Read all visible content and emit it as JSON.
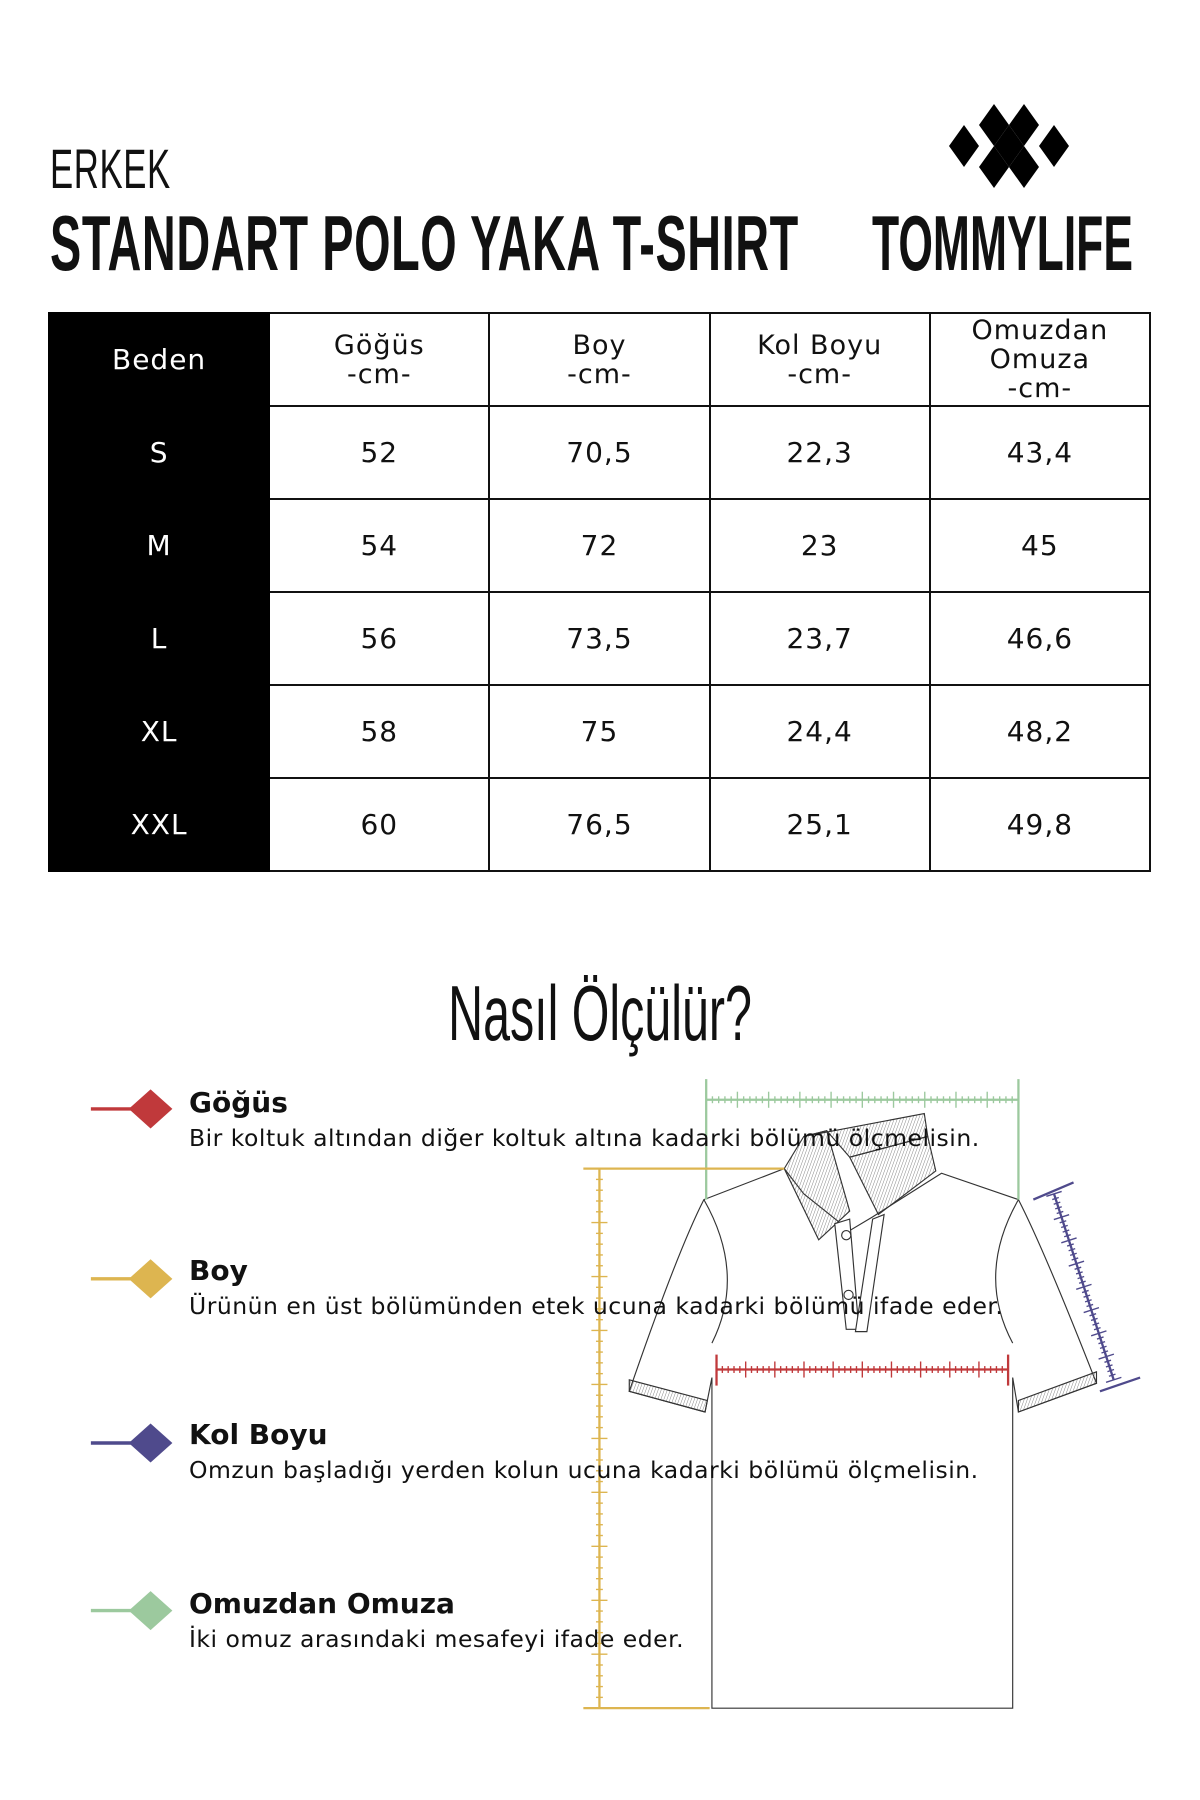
{
  "header": {
    "subtitle": "ERKEK",
    "title": "STANDART POLO YAKA T-SHIRT",
    "brand": "TOMMYLIFE"
  },
  "table": {
    "headers": [
      {
        "line1": "Beden"
      },
      {
        "line1": "Göğüs",
        "line2": "-cm-"
      },
      {
        "line1": "Boy",
        "line2": "-cm-"
      },
      {
        "line1": "Kol Boyu",
        "line2": "-cm-"
      },
      {
        "line1": "Omuzdan",
        "line2": "Omuza",
        "line3": "-cm-"
      }
    ],
    "rows": [
      [
        "S",
        "52",
        "70,5",
        "22,3",
        "43,4"
      ],
      [
        "M",
        "54",
        "72",
        "23",
        "45"
      ],
      [
        "L",
        "56",
        "73,5",
        "23,7",
        "46,6"
      ],
      [
        "XL",
        "58",
        "75",
        "24,4",
        "48,2"
      ],
      [
        "XXL",
        "60",
        "76,5",
        "25,1",
        "49,8"
      ]
    ]
  },
  "how": {
    "title": "Nasıl Ölçülür?"
  },
  "legend": [
    {
      "title": "Göğüs",
      "text": "Bir koltuk altından diğer koltuk altına kadarki bölümü ölçmelisin.",
      "color": "#c0393b"
    },
    {
      "title": "Boy",
      "text": "Ürünün en üst bölümünden etek ucuna kadarki bölümü ifade eder.",
      "color": "#ddb550"
    },
    {
      "title": "Kol Boyu",
      "text": "Omzun başladığı yerden kolun ucuna kadarki bölümü ölçmelisin.",
      "color": "#4f4a8c"
    },
    {
      "title": "Omuzdan Omuza",
      "text": "İki omuz arasındaki mesafeyi ifade eder.",
      "color": "#9cc99e"
    }
  ]
}
